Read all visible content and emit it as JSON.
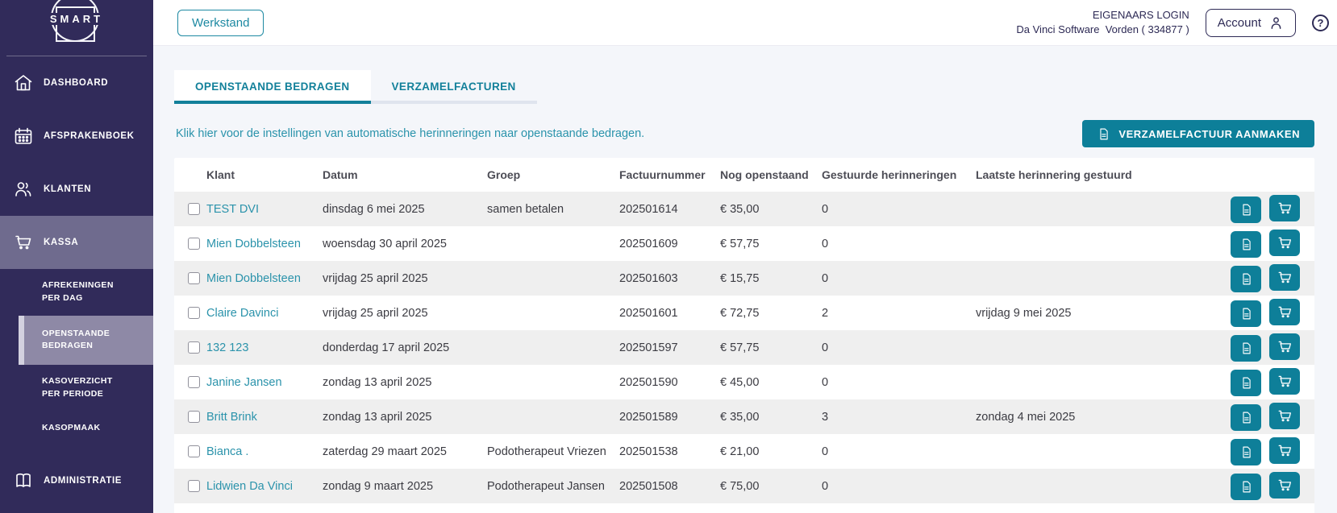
{
  "colors": {
    "accent_teal": "#0d7f99",
    "link_teal": "#2a93ab",
    "sidebar_bg": "#312b5a",
    "sidebar_active": "#6f6b8e",
    "submenu_active": "#8e89a6",
    "navy": "#2d2a55",
    "row_alt": "#efefef"
  },
  "sidebar": {
    "logo_text": "SMART",
    "items": [
      {
        "label": "DASHBOARD",
        "icon": "home-icon"
      },
      {
        "label": "AFSPRAKENBOEK",
        "icon": "calendar-icon"
      },
      {
        "label": "KLANTEN",
        "icon": "people-icon"
      },
      {
        "label": "KASSA",
        "icon": "cart-icon",
        "active": true
      },
      {
        "label": "ADMINISTRATIE",
        "icon": "book-icon"
      }
    ],
    "kassa_submenu": [
      {
        "label": "AFREKENINGEN PER DAG",
        "active": false
      },
      {
        "label": "OPENSTAANDE BEDRAGEN",
        "active": true
      },
      {
        "label": "KASOVERZICHT PER PERIODE",
        "active": false
      },
      {
        "label": "KASOPMAAK",
        "active": false
      }
    ]
  },
  "topbar": {
    "werkstand_label": "Werkstand",
    "login_type": "EIGENAARS LOGIN",
    "company": "Da Vinci Software",
    "location": "Vorden ( 334877 )",
    "account_label": "Account",
    "help_label": "?"
  },
  "tabs": [
    {
      "label": "OPENSTAANDE BEDRAGEN",
      "active": true
    },
    {
      "label": "VERZAMELFACTUREN",
      "active": false
    }
  ],
  "reminder_link": "Klik hier voor de instellingen van automatische herinneringen naar openstaande bedragen.",
  "create_invoice_button": "VERZAMELFACTUUR AANMAKEN",
  "table": {
    "columns": [
      "Klant",
      "Datum",
      "Groep",
      "Factuurnummer",
      "Nog openstaand",
      "Gestuurde herinneringen",
      "Laatste herinnering gestuurd"
    ],
    "rows": [
      {
        "klant": "TEST DVI",
        "datum": "dinsdag 6 mei 2025",
        "groep": "samen betalen",
        "factuurnummer": "202501614",
        "nog_openstaand": "€ 35,00",
        "herinneringen": "0",
        "laatste": ""
      },
      {
        "klant": "Mien Dobbelsteen",
        "datum": "woensdag 30 april 2025",
        "groep": "",
        "factuurnummer": "202501609",
        "nog_openstaand": "€ 57,75",
        "herinneringen": "0",
        "laatste": ""
      },
      {
        "klant": "Mien Dobbelsteen",
        "datum": "vrijdag 25 april 2025",
        "groep": "",
        "factuurnummer": "202501603",
        "nog_openstaand": "€ 15,75",
        "herinneringen": "0",
        "laatste": ""
      },
      {
        "klant": "Claire Davinci",
        "datum": "vrijdag 25 april 2025",
        "groep": "",
        "factuurnummer": "202501601",
        "nog_openstaand": "€ 72,75",
        "herinneringen": "2",
        "laatste": "vrijdag 9 mei 2025"
      },
      {
        "klant": "132 123",
        "datum": "donderdag 17 april 2025",
        "groep": "",
        "factuurnummer": "202501597",
        "nog_openstaand": "€ 57,75",
        "herinneringen": "0",
        "laatste": ""
      },
      {
        "klant": "Janine Jansen",
        "datum": "zondag 13 april 2025",
        "groep": "",
        "factuurnummer": "202501590",
        "nog_openstaand": "€ 45,00",
        "herinneringen": "0",
        "laatste": ""
      },
      {
        "klant": "Britt Brink",
        "datum": "zondag 13 april 2025",
        "groep": "",
        "factuurnummer": "202501589",
        "nog_openstaand": "€ 35,00",
        "herinneringen": "3",
        "laatste": "zondag 4 mei 2025"
      },
      {
        "klant": "Bianca .",
        "datum": "zaterdag 29 maart 2025",
        "groep": "Podotherapeut Vriezen",
        "factuurnummer": "202501538",
        "nog_openstaand": "€ 21,00",
        "herinneringen": "0",
        "laatste": ""
      },
      {
        "klant": "Lidwien Da Vinci",
        "datum": "zondag 9 maart 2025",
        "groep": "Podotherapeut Jansen",
        "factuurnummer": "202501508",
        "nog_openstaand": "€ 75,00",
        "herinneringen": "0",
        "laatste": ""
      }
    ]
  }
}
